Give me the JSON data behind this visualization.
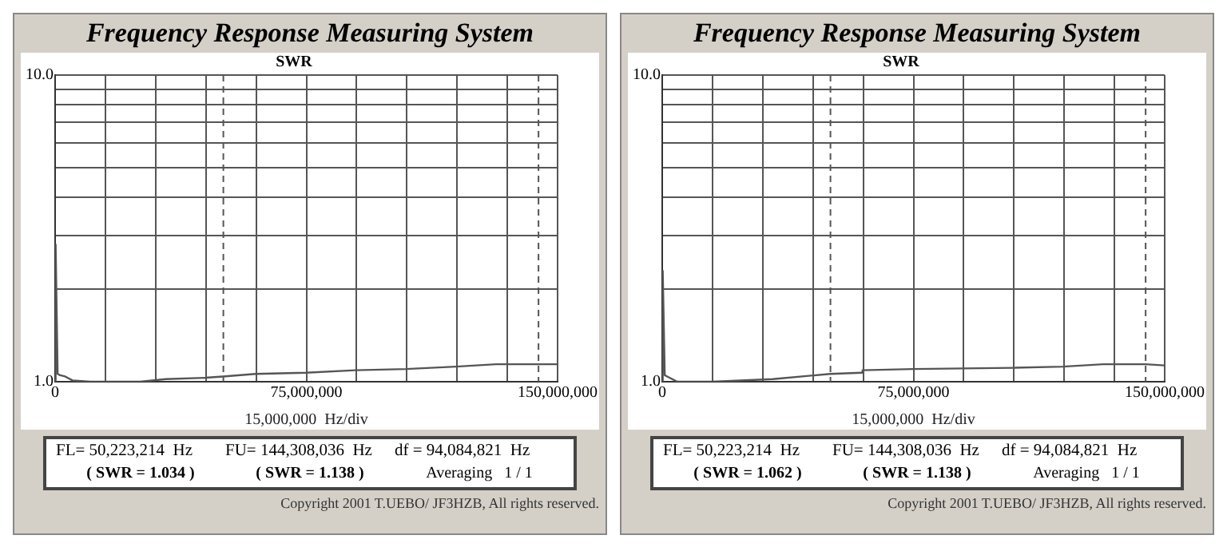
{
  "chart_data": [
    {
      "type": "line",
      "title": "Frequency Response Measuring System",
      "subtitle": "SWR",
      "xlabel": "15,000,000  Hz/div",
      "x": [
        0,
        150000,
        750000,
        1500000,
        3000000,
        5200000,
        10500000,
        25400000,
        33000000,
        44900000,
        50100000,
        59800000,
        74800000,
        89700000,
        104700000,
        119600000,
        131600000,
        135300000,
        144300000,
        150000000
      ],
      "series": [
        {
          "color": "#555555",
          "values": [
            1.0,
            2.8,
            1.06,
            1.05,
            1.04,
            1.01,
            1.0,
            1.0,
            1.02,
            1.03,
            1.04,
            1.06,
            1.07,
            1.09,
            1.1,
            1.12,
            1.14,
            1.14,
            1.14,
            1.14
          ]
        }
      ],
      "xlim": [
        0,
        150000000
      ],
      "xticks": [
        0,
        {
          "value": 15000000,
          "label": null
        },
        {
          "value": 30000000,
          "label": null
        },
        {
          "value": 45000000,
          "label": null
        },
        {
          "value": 60000000,
          "label": null
        },
        {
          "value": 75000000,
          "label": "75,000,000"
        },
        {
          "value": 90000000,
          "label": null
        },
        {
          "value": 105000000,
          "label": null
        },
        {
          "value": 120000000,
          "label": null
        },
        {
          "value": 135000000,
          "label": null
        },
        {
          "value": 150000000,
          "label": "150,000,000"
        }
      ],
      "ylim": [
        1,
        10
      ],
      "log": true,
      "yticks": [
        {
          "value": 1,
          "label": "1.0"
        },
        {
          "value": 2,
          "label": null
        },
        {
          "value": 3,
          "label": null
        },
        {
          "value": 4,
          "label": null
        },
        {
          "value": 5,
          "label": null
        },
        {
          "value": 6,
          "label": null
        },
        {
          "value": 7,
          "label": null
        },
        {
          "value": 8,
          "label": null
        },
        {
          "value": 9,
          "label": null
        },
        {
          "value": 10,
          "label": "10.0"
        }
      ],
      "grid": true,
      "legend": false,
      "ref_lines": [
        {
          "axis": "x",
          "value": 50223214,
          "line_style": "dashed",
          "color": "#555555"
        },
        {
          "axis": "x",
          "value": 144308036,
          "line_style": "dashed",
          "color": "#555555"
        }
      ],
      "annotations": [
        "FL= 50,223,214  Hz",
        "FU= 144,308,036  Hz",
        "df = 94,084,821  Hz",
        "( SWR = 1.034 )",
        "( SWR = 1.138 )",
        "Averaging   1 / 1",
        "Copyright 2001 T.UEBO/ JF3HZB, All rights reserved."
      ]
    },
    {
      "type": "line",
      "title": "Frequency Response Measuring System",
      "subtitle": "SWR",
      "xlabel": "15,000,000  Hz/div",
      "x": [
        0,
        150000,
        750000,
        1500000,
        4500000,
        15000000,
        33000000,
        50100000,
        59500000,
        59800000,
        74800000,
        104700000,
        119600000,
        131600000,
        144300000,
        150000000
      ],
      "series": [
        {
          "color": "#555555",
          "values": [
            1.0,
            2.3,
            1.05,
            1.04,
            1.0,
            1.0,
            1.02,
            1.06,
            1.07,
            1.09,
            1.1,
            1.11,
            1.12,
            1.14,
            1.14,
            1.13
          ]
        }
      ],
      "xlim": [
        0,
        150000000
      ],
      "xticks": [
        0,
        {
          "value": 15000000,
          "label": null
        },
        {
          "value": 30000000,
          "label": null
        },
        {
          "value": 45000000,
          "label": null
        },
        {
          "value": 60000000,
          "label": null
        },
        {
          "value": 75000000,
          "label": "75,000,000"
        },
        {
          "value": 90000000,
          "label": null
        },
        {
          "value": 105000000,
          "label": null
        },
        {
          "value": 120000000,
          "label": null
        },
        {
          "value": 135000000,
          "label": null
        },
        {
          "value": 150000000,
          "label": "150,000,000"
        }
      ],
      "ylim": [
        1,
        10
      ],
      "log": true,
      "yticks": [
        {
          "value": 1,
          "label": "1.0"
        },
        {
          "value": 2,
          "label": null
        },
        {
          "value": 3,
          "label": null
        },
        {
          "value": 4,
          "label": null
        },
        {
          "value": 5,
          "label": null
        },
        {
          "value": 6,
          "label": null
        },
        {
          "value": 7,
          "label": null
        },
        {
          "value": 8,
          "label": null
        },
        {
          "value": 9,
          "label": null
        },
        {
          "value": 10,
          "label": "10.0"
        }
      ],
      "grid": true,
      "legend": false,
      "ref_lines": [
        {
          "axis": "x",
          "value": 50223214,
          "line_style": "dashed",
          "color": "#555555"
        },
        {
          "axis": "x",
          "value": 144308036,
          "line_style": "dashed",
          "color": "#555555"
        }
      ],
      "annotations": [
        "FL= 50,223,214  Hz",
        "FU= 144,308,036  Hz",
        "df = 94,084,821  Hz",
        "( SWR = 1.062 )",
        "( SWR = 1.138 )",
        "Averaging   1 / 1",
        "Copyright 2001 T.UEBO/ JF3HZB, All rights reserved."
      ]
    }
  ]
}
